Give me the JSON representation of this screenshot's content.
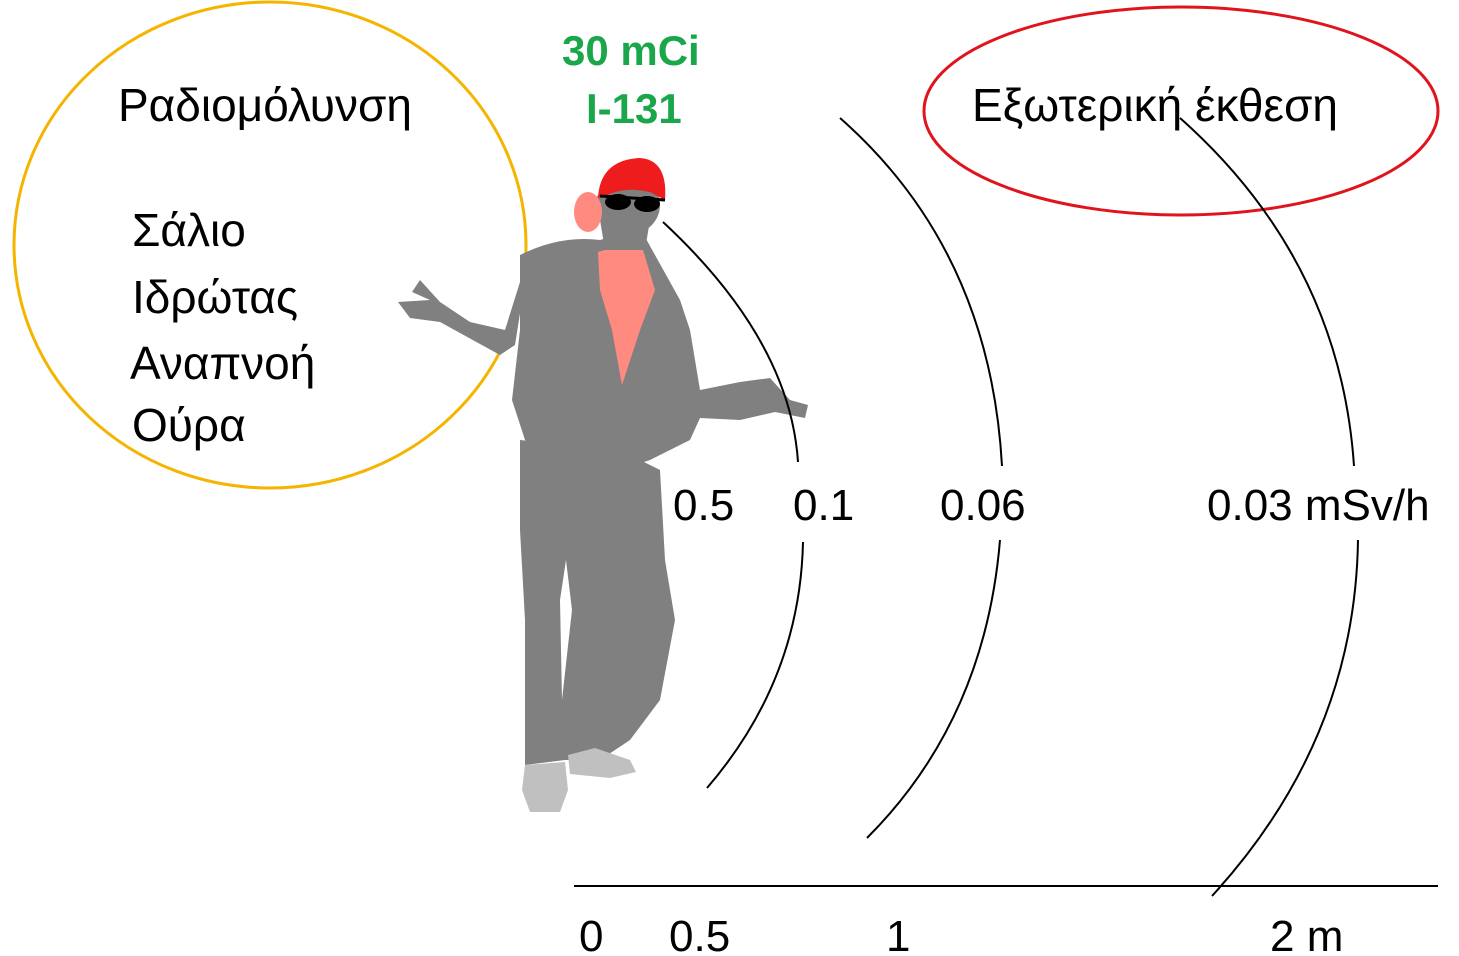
{
  "source": {
    "activity": "30 mCi",
    "isotope": "I-131",
    "color": "#1aa64a"
  },
  "contamination": {
    "title": "Ραδιομόλυνση",
    "items": [
      "Σάλιο",
      "Ιδρώτας",
      "Αναπνοή",
      "Ούρα"
    ],
    "circle_color": "#f4b400"
  },
  "external": {
    "title": "Εξωτερική έκθεση",
    "ellipse_color": "#e0141c"
  },
  "dose_rates": [
    "0.5",
    "0.1",
    "0.06",
    "0.03 mSv/h"
  ],
  "distance_axis": [
    "0",
    "0.5",
    "1",
    "2 m"
  ],
  "figure": {
    "body_color": "#808080",
    "shirt_color": "#ff8a80",
    "cap_color": "#ee1c1c",
    "shoe_color": "#c0c0c0"
  }
}
